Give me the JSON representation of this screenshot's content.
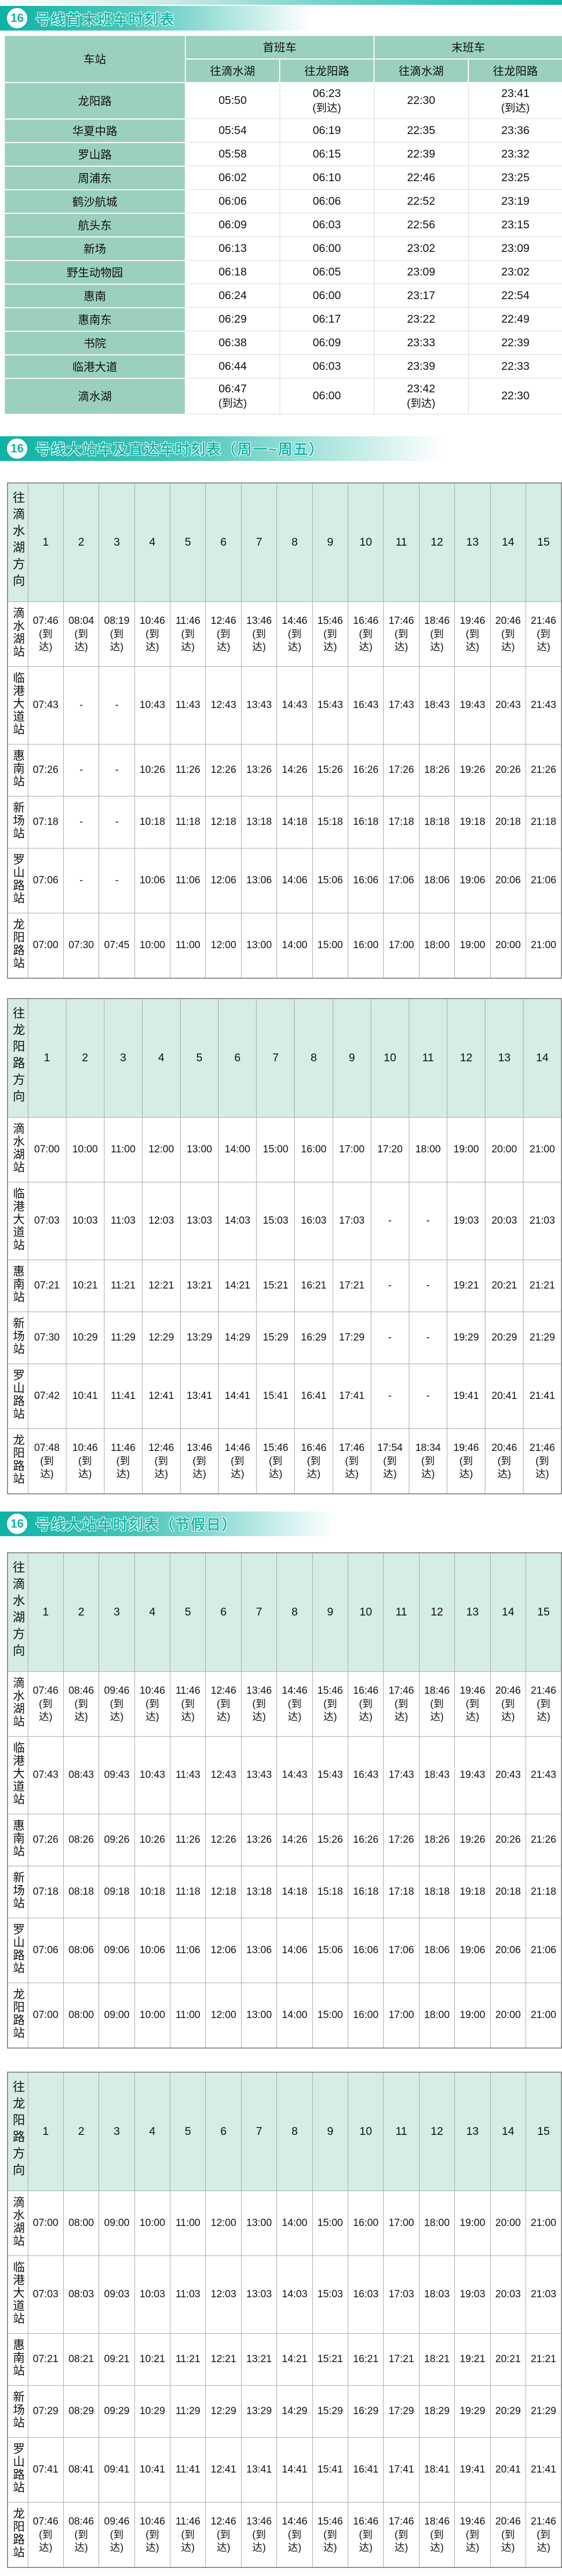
{
  "theme": {
    "accent_teal": "#12b7aa",
    "banner_text": "#17b7ab",
    "header_green": "#9bd0bf",
    "header_light_green": "#d6ece6",
    "arrive_note": "(到达)"
  },
  "sections": [
    {
      "badge": "16",
      "title": "号线首末班车时刻表",
      "table": {
        "station_header": "车站",
        "first_train_header": "首班车",
        "last_train_header": "末班车",
        "dir_dishuihu": "往滴水湖",
        "dir_longyanglu": "往龙阳路",
        "rows": [
          {
            "station": "龙阳路",
            "first_dishuihu": "05:50",
            "first_longyanglu": "06:23(到达)",
            "last_dishuihu": "22:30",
            "last_longyanglu": "23:41(到达)"
          },
          {
            "station": "华夏中路",
            "first_dishuihu": "05:54",
            "first_longyanglu": "06:19",
            "last_dishuihu": "22:35",
            "last_longyanglu": "23:36"
          },
          {
            "station": "罗山路",
            "first_dishuihu": "05:58",
            "first_longyanglu": "06:15",
            "last_dishuihu": "22:39",
            "last_longyanglu": "23:32"
          },
          {
            "station": "周浦东",
            "first_dishuihu": "06:02",
            "first_longyanglu": "06:10",
            "last_dishuihu": "22:46",
            "last_longyanglu": "23:25"
          },
          {
            "station": "鹤沙航城",
            "first_dishuihu": "06:06",
            "first_longyanglu": "06:06",
            "last_dishuihu": "22:52",
            "last_longyanglu": "23:19"
          },
          {
            "station": "航头东",
            "first_dishuihu": "06:09",
            "first_longyanglu": "06:03",
            "last_dishuihu": "22:56",
            "last_longyanglu": "23:15"
          },
          {
            "station": "新场",
            "first_dishuihu": "06:13",
            "first_longyanglu": "06:00",
            "last_dishuihu": "23:02",
            "last_longyanglu": "23:09"
          },
          {
            "station": "野生动物园",
            "first_dishuihu": "06:18",
            "first_longyanglu": "06:05",
            "last_dishuihu": "23:09",
            "last_longyanglu": "23:02"
          },
          {
            "station": "惠南",
            "first_dishuihu": "06:24",
            "first_longyanglu": "06:00",
            "last_dishuihu": "23:17",
            "last_longyanglu": "22:54"
          },
          {
            "station": "惠南东",
            "first_dishuihu": "06:29",
            "first_longyanglu": "06:17",
            "last_dishuihu": "23:22",
            "last_longyanglu": "22:49"
          },
          {
            "station": "书院",
            "first_dishuihu": "06:38",
            "first_longyanglu": "06:09",
            "last_dishuihu": "23:33",
            "last_longyanglu": "22:39"
          },
          {
            "station": "临港大道",
            "first_dishuihu": "06:44",
            "first_longyanglu": "06:03",
            "last_dishuihu": "23:39",
            "last_longyanglu": "22:33"
          },
          {
            "station": "滴水湖",
            "first_dishuihu": "06:47(到达)",
            "first_longyanglu": "06:00",
            "last_dishuihu": "23:42(到达)",
            "last_longyanglu": "22:30"
          }
        ]
      }
    },
    {
      "badge": "16",
      "title": "号线大站车及直达车时刻表（周一~周五）",
      "tables": [
        {
          "id": "tableA",
          "direction": "往滴水湖方向",
          "train_numbers": [
            "1",
            "2",
            "3",
            "4",
            "5",
            "6",
            "7",
            "8",
            "9",
            "10",
            "11",
            "12",
            "13",
            "14",
            "15"
          ],
          "rows": [
            {
              "station": "滴水湖站",
              "times": [
                "07:46(到达)",
                "08:04(到达)",
                "08:19(到达)",
                "10:46(到达)",
                "11:46(到达)",
                "12:46(到达)",
                "13:46(到达)",
                "14:46(到达)",
                "15:46(到达)",
                "16:46(到达)",
                "17:46(到达)",
                "18:46(到达)",
                "19:46(到达)",
                "20:46(到达)",
                "21:46(到达)"
              ]
            },
            {
              "station": "临港大道站",
              "times": [
                "07:43",
                "-",
                "-",
                "10:43",
                "11:43",
                "12:43",
                "13:43",
                "14:43",
                "15:43",
                "16:43",
                "17:43",
                "18:43",
                "19:43",
                "20:43",
                "21:43"
              ]
            },
            {
              "station": "惠南站",
              "times": [
                "07:26",
                "-",
                "-",
                "10:26",
                "11:26",
                "12:26",
                "13:26",
                "14:26",
                "15:26",
                "16:26",
                "17:26",
                "18:26",
                "19:26",
                "20:26",
                "21:26"
              ]
            },
            {
              "station": "新场站",
              "times": [
                "07:18",
                "-",
                "-",
                "10:18",
                "11:18",
                "12:18",
                "13:18",
                "14:18",
                "15:18",
                "16:18",
                "17:18",
                "18:18",
                "19:18",
                "20:18",
                "21:18"
              ]
            },
            {
              "station": "罗山路站",
              "times": [
                "07:06",
                "-",
                "-",
                "10:06",
                "11:06",
                "12:06",
                "13:06",
                "14:06",
                "15:06",
                "16:06",
                "17:06",
                "18:06",
                "19:06",
                "20:06",
                "21:06"
              ]
            },
            {
              "station": "龙阳路站",
              "times": [
                "07:00",
                "07:30",
                "07:45",
                "10:00",
                "11:00",
                "12:00",
                "13:00",
                "14:00",
                "15:00",
                "16:00",
                "17:00",
                "18:00",
                "19:00",
                "20:00",
                "21:00"
              ]
            }
          ]
        },
        {
          "id": "tableB",
          "direction": "往龙阳路方向",
          "train_numbers": [
            "1",
            "2",
            "3",
            "4",
            "5",
            "6",
            "7",
            "8",
            "9",
            "10",
            "11",
            "12",
            "13",
            "14"
          ],
          "rows": [
            {
              "station": "滴水湖站",
              "times": [
                "07:00",
                "10:00",
                "11:00",
                "12:00",
                "13:00",
                "14:00",
                "15:00",
                "16:00",
                "17:00",
                "17:20",
                "18:00",
                "19:00",
                "20:00",
                "21:00"
              ]
            },
            {
              "station": "临港大道站",
              "times": [
                "07:03",
                "10:03",
                "11:03",
                "12:03",
                "13:03",
                "14:03",
                "15:03",
                "16:03",
                "17:03",
                "-",
                "-",
                "19:03",
                "20:03",
                "21:03"
              ]
            },
            {
              "station": "惠南站",
              "times": [
                "07:21",
                "10:21",
                "11:21",
                "12:21",
                "13:21",
                "14:21",
                "15:21",
                "16:21",
                "17:21",
                "-",
                "-",
                "19:21",
                "20:21",
                "21:21"
              ]
            },
            {
              "station": "新场站",
              "times": [
                "07:30",
                "10:29",
                "11:29",
                "12:29",
                "13:29",
                "14:29",
                "15:29",
                "16:29",
                "17:29",
                "-",
                "-",
                "19:29",
                "20:29",
                "21:29"
              ]
            },
            {
              "station": "罗山路站",
              "times": [
                "07:42",
                "10:41",
                "11:41",
                "12:41",
                "13:41",
                "14:41",
                "15:41",
                "16:41",
                "17:41",
                "-",
                "-",
                "19:41",
                "20:41",
                "21:41"
              ]
            },
            {
              "station": "龙阳路站",
              "times": [
                "07:48(到达)",
                "10:46(到达)",
                "11:46(到达)",
                "12:46(到达)",
                "13:46(到达)",
                "14:46(到达)",
                "15:46(到达)",
                "16:46(到达)",
                "17:46(到达)",
                "17:54(到达)",
                "18:34(到达)",
                "19:46(到达)",
                "20:46(到达)",
                "21:46(到达)"
              ]
            }
          ]
        }
      ]
    },
    {
      "badge": "16",
      "title": "号线大站车时刻表（节假日）",
      "tables": [
        {
          "id": "tableC",
          "direction": "往滴水湖方向",
          "train_numbers": [
            "1",
            "2",
            "3",
            "4",
            "5",
            "6",
            "7",
            "8",
            "9",
            "10",
            "11",
            "12",
            "13",
            "14",
            "15"
          ],
          "rows": [
            {
              "station": "滴水湖站",
              "times": [
                "07:46(到达)",
                "08:46(到达)",
                "09:46(到达)",
                "10:46(到达)",
                "11:46(到达)",
                "12:46(到达)",
                "13:46(到达)",
                "14:46(到达)",
                "15:46(到达)",
                "16:46(到达)",
                "17:46(到达)",
                "18:46(到达)",
                "19:46(到达)",
                "20:46(到达)",
                "21:46(到达)"
              ]
            },
            {
              "station": "临港大道站",
              "times": [
                "07:43",
                "08:43",
                "09:43",
                "10:43",
                "11:43",
                "12:43",
                "13:43",
                "14:43",
                "15:43",
                "16:43",
                "17:43",
                "18:43",
                "19:43",
                "20:43",
                "21:43"
              ]
            },
            {
              "station": "惠南站",
              "times": [
                "07:26",
                "08:26",
                "09:26",
                "10:26",
                "11:26",
                "12:26",
                "13:26",
                "14:26",
                "15:26",
                "16:26",
                "17:26",
                "18:26",
                "19:26",
                "20:26",
                "21:26"
              ]
            },
            {
              "station": "新场站",
              "times": [
                "07:18",
                "08:18",
                "09:18",
                "10:18",
                "11:18",
                "12:18",
                "13:18",
                "14:18",
                "15:18",
                "16:18",
                "17:18",
                "18:18",
                "19:18",
                "20:18",
                "21:18"
              ]
            },
            {
              "station": "罗山路站",
              "times": [
                "07:06",
                "08:06",
                "09:06",
                "10:06",
                "11:06",
                "12:06",
                "13:06",
                "14:06",
                "15:06",
                "16:06",
                "17:06",
                "18:06",
                "19:06",
                "20:06",
                "21:06"
              ]
            },
            {
              "station": "龙阳路站",
              "times": [
                "07:00",
                "08:00",
                "09:00",
                "10:00",
                "11:00",
                "12:00",
                "13:00",
                "14:00",
                "15:00",
                "16:00",
                "17:00",
                "18:00",
                "19:00",
                "20:00",
                "21:00"
              ]
            }
          ]
        },
        {
          "id": "tableD",
          "direction": "往龙阳路方向",
          "train_numbers": [
            "1",
            "2",
            "3",
            "4",
            "5",
            "6",
            "7",
            "8",
            "9",
            "10",
            "11",
            "12",
            "13",
            "14",
            "15"
          ],
          "rows": [
            {
              "station": "滴水湖站",
              "times": [
                "07:00",
                "08:00",
                "09:00",
                "10:00",
                "11:00",
                "12:00",
                "13:00",
                "14:00",
                "15:00",
                "16:00",
                "17:00",
                "18:00",
                "19:00",
                "20:00",
                "21:00"
              ]
            },
            {
              "station": "临港大道站",
              "times": [
                "07:03",
                "08:03",
                "09:03",
                "10:03",
                "11:03",
                "12:03",
                "13:03",
                "14:03",
                "15:03",
                "16:03",
                "17:03",
                "18:03",
                "19:03",
                "20:03",
                "21:03"
              ]
            },
            {
              "station": "惠南站",
              "times": [
                "07:21",
                "08:21",
                "09:21",
                "10:21",
                "11:21",
                "12:21",
                "13:21",
                "14:21",
                "15:21",
                "16:21",
                "17:21",
                "18:21",
                "19:21",
                "20:21",
                "21:21"
              ]
            },
            {
              "station": "新场站",
              "times": [
                "07:29",
                "08:29",
                "09:29",
                "10:29",
                "11:29",
                "12:29",
                "13:29",
                "14:29",
                "15:29",
                "16:29",
                "17:29",
                "18:29",
                "19:29",
                "20:29",
                "21:29"
              ]
            },
            {
              "station": "罗山路站",
              "times": [
                "07:41",
                "08:41",
                "09:41",
                "10:41",
                "11:41",
                "12:41",
                "13:41",
                "14:41",
                "15:41",
                "16:41",
                "17:41",
                "18:41",
                "19:41",
                "20:41",
                "21:41"
              ]
            },
            {
              "station": "龙阳路站",
              "times": [
                "07:46(到达)",
                "08:46(到达)",
                "09:46(到达)",
                "10:46(到达)",
                "11:46(到达)",
                "12:46(到达)",
                "13:46(到达)",
                "14:46(到达)",
                "15:46(到达)",
                "16:46(到达)",
                "17:46(到达)",
                "18:46(到达)",
                "19:46(到达)",
                "20:46(到达)",
                "21:46(到达)"
              ]
            }
          ]
        }
      ]
    }
  ]
}
